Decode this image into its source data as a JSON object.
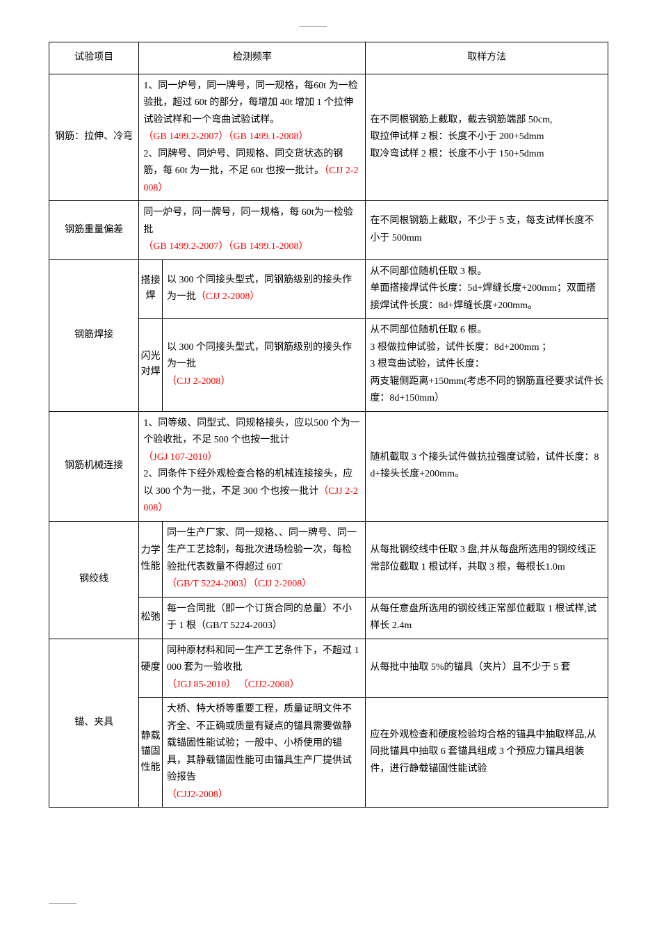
{
  "header": {
    "col1": "试验项目",
    "col2": "检测频率",
    "col3": "取样方法"
  },
  "rows": {
    "r1": {
      "item": "钢筋：拉伸、冷弯",
      "freq_p1": "1、同一炉号，同一牌号，同一规格，每60t 为一检验批，超过 60t 的部分，每增加 40t 增加 1 个拉伸试验试样和一个弯曲试验试样。",
      "freq_ref1": "（GB 1499.2-2007）（GB 1499.1-2008）",
      "freq_p2a": "2、同牌号、同炉号、同规格、同交货状态的钢筋，每 60t 为一批，不足 60t 也按一批计。",
      "freq_ref2": "（CJJ 2-2008）",
      "method_l1": "在不同根钢筋上截取，截去钢筋端部 50cm,",
      "method_l2": "取拉伸试样 2 根：长度不小于 200+5dmm",
      "method_l3": "取冷弯试样 2 根：长度不小于 150+5dmm"
    },
    "r2": {
      "item": "钢筋重量偏差",
      "freq_p1": "同一炉号，同一牌号，同一规格，每 60t为一检验批",
      "freq_ref": "（GB 1499.2-2007）（GB 1499.1-2008）",
      "method": "在不同根钢筋上截取，不少于 5 支，每支试样长度不小于 500mm"
    },
    "r3": {
      "item": "钢筋焊接",
      "sub1": "搭接焊",
      "sub1_freq": "以 300 个同接头型式，同钢筋级别的接头作为一批",
      "sub1_ref": "（CJJ 2-2008）",
      "sub1_method_l1": "从不同部位随机任取 3 根。",
      "sub1_method_l2": "单面搭接焊试件长度：5d+焊缝长度+200mm；双面搭接焊试件长度：8d+焊缝长度+200mm。",
      "sub2": "闪光对焊",
      "sub2_freq": "以 300 个同接头型式，同钢筋级别的接头作为一批",
      "sub2_ref": "（CJJ 2-2008）",
      "sub2_method_l1": "从不同部位随机任取 6 根。",
      "sub2_method_l2": "3 根做拉伸试验，试件长度：8d+200mm ；",
      "sub2_method_l3": "3 根弯曲试验，试件长度：",
      "sub2_method_l4": "两支辊侧距离+150mm(考虑不同的钢筋直径要求试件长度：8d+150mm）"
    },
    "r4": {
      "item": "钢筋机械连接",
      "freq_p1": "1、同等级、同型式、同规格接头，应以500 个为一个验收批，不足 500 个也按一批计",
      "freq_ref1": "（JGJ 107-2010）",
      "freq_p2": "2、同条件下经外观检查合格的机械连接接头，应以 300 个为一批，不足 300 个也按一批计",
      "freq_ref2": "（CJJ 2-2008）",
      "method": "随机截取 3 个接头试件做抗拉强度试验，试件长度：8d+接头长度+200mm。"
    },
    "r5": {
      "item": "钢绞线",
      "sub1": "力学性能",
      "sub1_freq": "同一生产厂家、同一规格、、同一牌号、同一生产工艺捻制，每批次进场检验一次，每检验批代表数量不得超过 60T",
      "sub1_ref": "（GB/T 5224-2003）（CJJ 2-2008）",
      "sub1_method": "从每批钢绞线中任取 3 盘,并从每盘所选用的钢绞线正常部位截取 1 根试样，共取 3 根，每根长1.0m",
      "sub2": "松弛",
      "sub2_freq": "每一合同批（即一个订货合同的总量）不小于 1 根（GB/T 5224-2003）",
      "sub2_method": "从每任意盘所选用的钢绞线正常部位截取 1 根试样,试样长 2.4m"
    },
    "r6": {
      "item": "锚、夹具",
      "sub1": "硬度",
      "sub1_freq": "同种原材料和同一生产工艺条件下，不超过 1000 套为一验收批",
      "sub1_ref": "（JGJ 85-2010） （CJJ2-2008）",
      "sub1_method": "从每批中抽取 5%的锚具（夹片）且不少于 5 套",
      "sub2": "静载锚固性能",
      "sub2_freq": "大桥、特大桥等重要工程，质量证明文件不齐全、不正确或质量有疑点的锚具需要做静载锚固性能试验；一般中、小桥使用的锚具，其静载锚固性能可由锚具生产厂提供试验报告",
      "sub2_ref": "（CJJ2-2008）",
      "sub2_method": "应在外观检查和硬度检验均合格的锚具中抽取样品,从同批锚具中抽取 6 套锚具组成 3 个预应力锚具组装件，进行静载锚固性能试验"
    }
  }
}
